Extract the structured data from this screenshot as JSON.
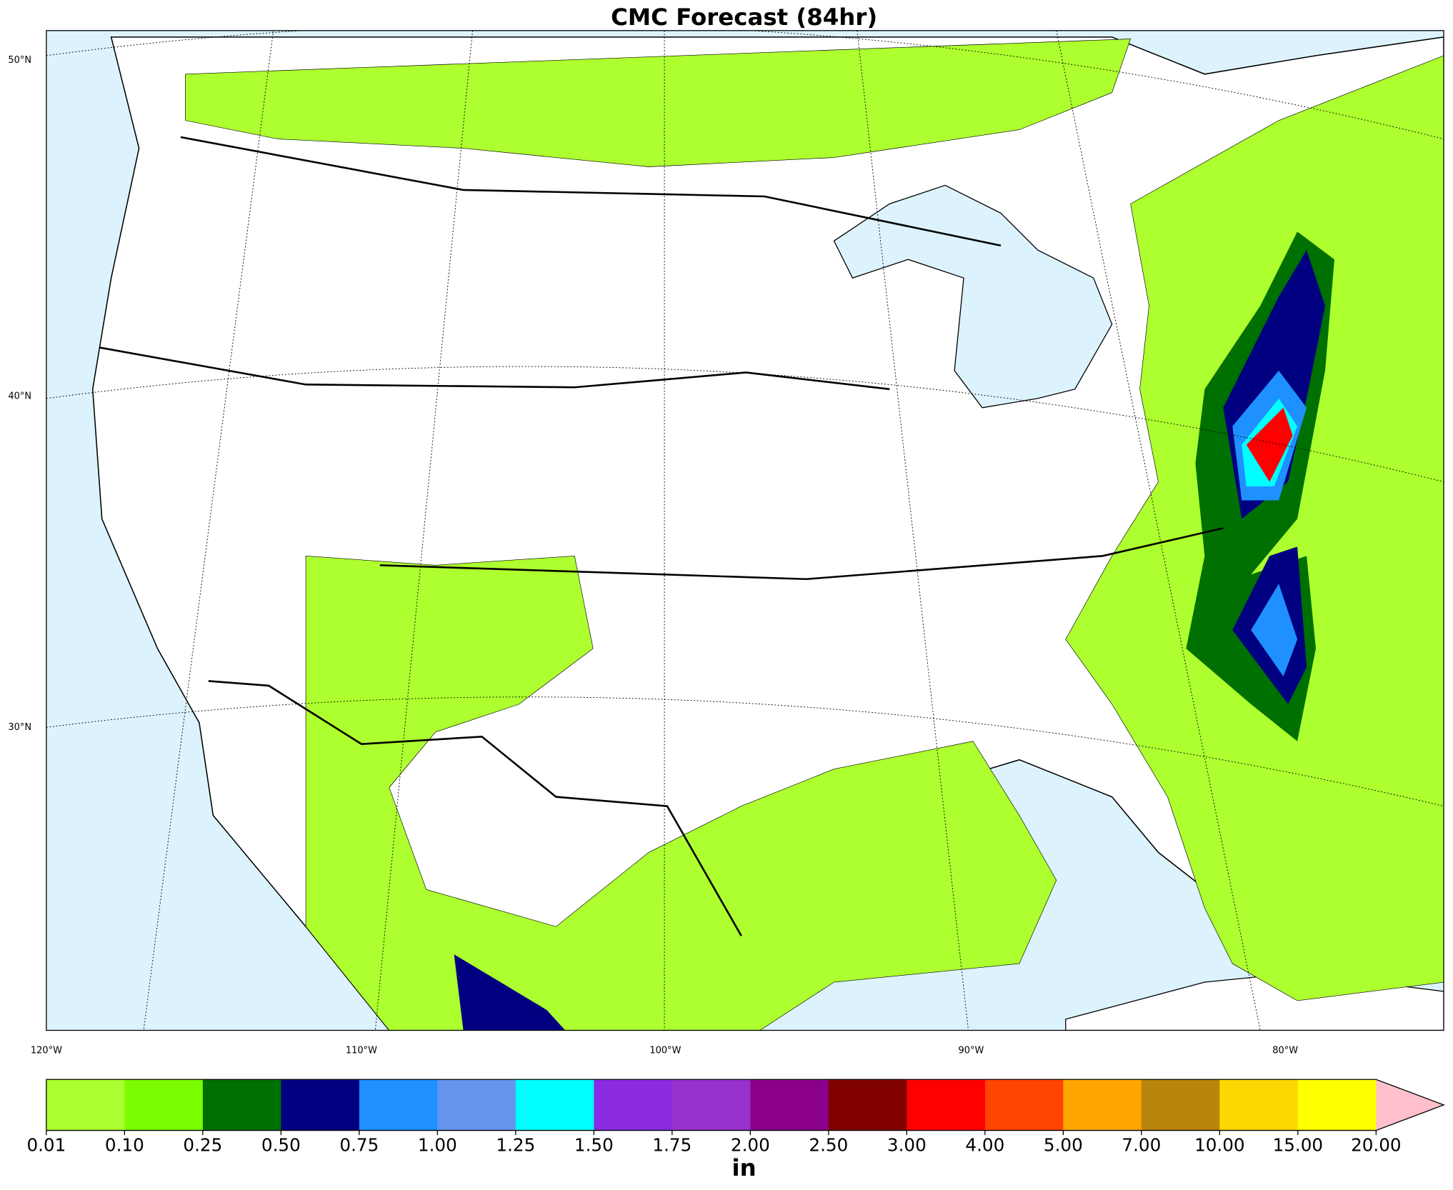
{
  "title": "CMC Forecast (84hr)",
  "map": {
    "lat_labels": [
      "50°N",
      "40°N",
      "30°N"
    ],
    "lon_labels": [
      "120°W",
      "110°W",
      "100°W",
      "90°W",
      "80°W"
    ]
  },
  "colorbar": {
    "levels": [
      "0.01",
      "0.10",
      "0.25",
      "0.50",
      "0.75",
      "1.00",
      "1.25",
      "1.50",
      "1.75",
      "2.00",
      "2.50",
      "3.00",
      "4.00",
      "5.00",
      "7.00",
      "10.00",
      "15.00",
      "20.00"
    ],
    "colors": [
      "#adff2f",
      "#7cfc00",
      "#007000",
      "#000080",
      "#1e90ff",
      "#6495ed",
      "#00ffff",
      "#8a2be2",
      "#9932cc",
      "#8b008b",
      "#800000",
      "#ff0000",
      "#ff4500",
      "#ffa500",
      "#b8860b",
      "#ffd700",
      "#ffff00"
    ],
    "extend_color": "#ffc0cb",
    "unit": "in"
  }
}
